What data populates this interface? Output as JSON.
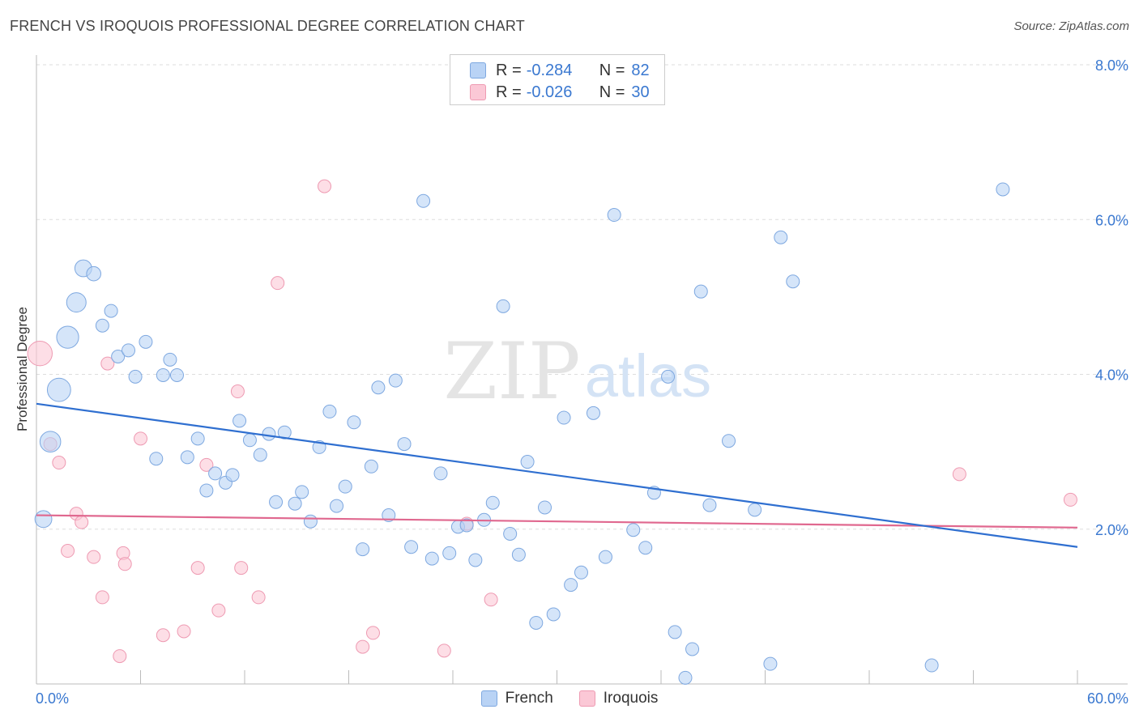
{
  "header": {
    "title": "FRENCH VS IROQUOIS PROFESSIONAL DEGREE CORRELATION CHART",
    "source": "Source: ZipAtlas.com"
  },
  "watermark": {
    "zip": "ZIP",
    "atlas": "atlas"
  },
  "legend": {
    "rows": [
      {
        "r_label": "R =",
        "r_value": "-0.284",
        "n_label": "N =",
        "n_value": "82"
      },
      {
        "r_label": "R =",
        "r_value": "-0.026",
        "n_label": "N =",
        "n_value": "30"
      }
    ]
  },
  "colors": {
    "french_fill": "#b9d3f5",
    "french_stroke": "#7ea8e0",
    "french_line": "#2f6fd0",
    "iroquois_fill": "#fbc8d6",
    "iroquois_stroke": "#ee9ab2",
    "iroquois_line": "#e0688f",
    "tick_label": "#3a78d0",
    "grid": "#dddddd"
  },
  "chart_data": {
    "type": "scatter",
    "title": "FRENCH VS IROQUOIS PROFESSIONAL DEGREE CORRELATION CHART",
    "xlabel": "",
    "ylabel": "Professional Degree",
    "xlim": [
      0,
      60
    ],
    "ylim": [
      0,
      8.0
    ],
    "x_tick_labels": [
      "0.0%",
      "60.0%"
    ],
    "y_ticks": [
      2.0,
      4.0,
      6.0,
      8.0
    ],
    "y_tick_labels": [
      "2.0%",
      "4.0%",
      "6.0%",
      "8.0%"
    ],
    "grid": true,
    "legend_position": "bottom-center",
    "series": [
      {
        "name": "French",
        "r": -0.284,
        "n": 82,
        "trend": {
          "x": [
            0,
            60
          ],
          "y": [
            3.62,
            1.77
          ]
        },
        "points": [
          [
            0.4,
            2.13,
            1.3
          ],
          [
            0.8,
            3.13,
            1.6
          ],
          [
            1.3,
            3.8,
            1.8
          ],
          [
            1.8,
            4.48,
            1.7
          ],
          [
            2.3,
            4.93,
            1.5
          ],
          [
            2.7,
            5.37,
            1.3
          ],
          [
            3.3,
            5.3,
            1.1
          ],
          [
            3.8,
            4.63,
            1
          ],
          [
            4.3,
            4.82,
            1
          ],
          [
            4.7,
            4.23,
            1
          ],
          [
            5.3,
            4.31,
            1
          ],
          [
            5.7,
            3.97,
            1
          ],
          [
            6.3,
            4.42,
            1
          ],
          [
            6.9,
            2.91,
            1
          ],
          [
            7.3,
            3.99,
            1
          ],
          [
            7.7,
            4.19,
            1
          ],
          [
            8.1,
            3.99,
            1
          ],
          [
            8.7,
            2.93,
            1
          ],
          [
            9.3,
            3.17,
            1
          ],
          [
            9.8,
            2.5,
            1
          ],
          [
            10.3,
            2.72,
            1
          ],
          [
            10.9,
            2.6,
            1
          ],
          [
            11.3,
            2.7,
            1
          ],
          [
            11.7,
            3.4,
            1
          ],
          [
            12.3,
            3.15,
            1
          ],
          [
            12.9,
            2.96,
            1
          ],
          [
            13.4,
            3.23,
            1
          ],
          [
            13.8,
            2.35,
            1
          ],
          [
            14.3,
            3.25,
            1
          ],
          [
            14.9,
            2.33,
            1
          ],
          [
            15.3,
            2.48,
            1
          ],
          [
            15.8,
            2.1,
            1
          ],
          [
            16.3,
            3.06,
            1
          ],
          [
            16.9,
            3.52,
            1
          ],
          [
            17.3,
            2.3,
            1
          ],
          [
            17.8,
            2.55,
            1
          ],
          [
            18.3,
            3.38,
            1
          ],
          [
            18.8,
            1.74,
            1
          ],
          [
            19.3,
            2.81,
            1
          ],
          [
            19.7,
            3.83,
            1
          ],
          [
            20.3,
            2.18,
            1
          ],
          [
            20.7,
            3.92,
            1
          ],
          [
            21.2,
            3.1,
            1
          ],
          [
            21.6,
            1.77,
            1
          ],
          [
            22.3,
            6.24,
            1
          ],
          [
            22.8,
            1.62,
            1
          ],
          [
            23.3,
            2.72,
            1
          ],
          [
            23.8,
            1.69,
            1
          ],
          [
            24.3,
            2.03,
            1
          ],
          [
            24.8,
            2.05,
            1
          ],
          [
            25.3,
            1.6,
            1
          ],
          [
            25.8,
            2.12,
            1
          ],
          [
            26.3,
            2.34,
            1
          ],
          [
            26.9,
            4.88,
            1
          ],
          [
            27.3,
            1.94,
            1
          ],
          [
            27.8,
            1.67,
            1
          ],
          [
            28.3,
            2.87,
            1
          ],
          [
            28.8,
            0.79,
            1
          ],
          [
            29.3,
            2.28,
            1
          ],
          [
            29.8,
            0.9,
            1
          ],
          [
            30.4,
            3.44,
            1
          ],
          [
            30.8,
            1.28,
            1
          ],
          [
            31.4,
            1.44,
            1
          ],
          [
            32.1,
            3.5,
            1
          ],
          [
            32.8,
            1.64,
            1
          ],
          [
            33.3,
            6.06,
            1
          ],
          [
            34.4,
            1.99,
            1
          ],
          [
            35.1,
            1.76,
            1
          ],
          [
            35.6,
            2.47,
            1
          ],
          [
            36.4,
            3.97,
            1
          ],
          [
            36.8,
            0.67,
            1
          ],
          [
            37.4,
            0.08,
            1
          ],
          [
            37.8,
            0.45,
            1
          ],
          [
            38.3,
            5.07,
            1
          ],
          [
            38.8,
            2.31,
            1
          ],
          [
            39.9,
            3.14,
            1
          ],
          [
            41.4,
            2.25,
            1
          ],
          [
            42.3,
            0.26,
            1
          ],
          [
            42.9,
            5.77,
            1
          ],
          [
            43.6,
            5.2,
            1
          ],
          [
            51.6,
            0.24,
            1
          ],
          [
            55.7,
            6.39,
            1
          ]
        ]
      },
      {
        "name": "Iroquois",
        "r": -0.026,
        "n": 30,
        "trend": {
          "x": [
            0,
            60
          ],
          "y": [
            2.18,
            2.02
          ]
        },
        "points": [
          [
            0.2,
            4.27,
            1.9
          ],
          [
            0.8,
            3.1,
            1
          ],
          [
            1.3,
            2.86,
            1
          ],
          [
            1.8,
            1.72,
            1
          ],
          [
            2.3,
            2.2,
            1
          ],
          [
            2.6,
            2.09,
            1
          ],
          [
            3.3,
            1.64,
            1
          ],
          [
            3.8,
            1.12,
            1
          ],
          [
            4.1,
            4.14,
            1
          ],
          [
            4.8,
            0.36,
            1
          ],
          [
            5.0,
            1.69,
            1
          ],
          [
            5.1,
            1.55,
            1
          ],
          [
            6.0,
            3.17,
            1
          ],
          [
            7.3,
            0.63,
            1
          ],
          [
            8.5,
            0.68,
            1
          ],
          [
            9.3,
            1.5,
            1
          ],
          [
            9.8,
            2.83,
            1
          ],
          [
            10.5,
            0.95,
            1
          ],
          [
            11.6,
            3.78,
            1
          ],
          [
            11.8,
            1.5,
            1
          ],
          [
            12.8,
            1.12,
            1
          ],
          [
            13.9,
            5.18,
            1
          ],
          [
            16.6,
            6.43,
            1
          ],
          [
            18.8,
            0.48,
            1
          ],
          [
            19.4,
            0.66,
            1
          ],
          [
            23.5,
            0.43,
            1
          ],
          [
            24.8,
            2.07,
            1
          ],
          [
            26.2,
            1.09,
            1
          ],
          [
            53.2,
            2.71,
            1
          ],
          [
            59.6,
            2.38,
            1
          ]
        ]
      }
    ]
  }
}
